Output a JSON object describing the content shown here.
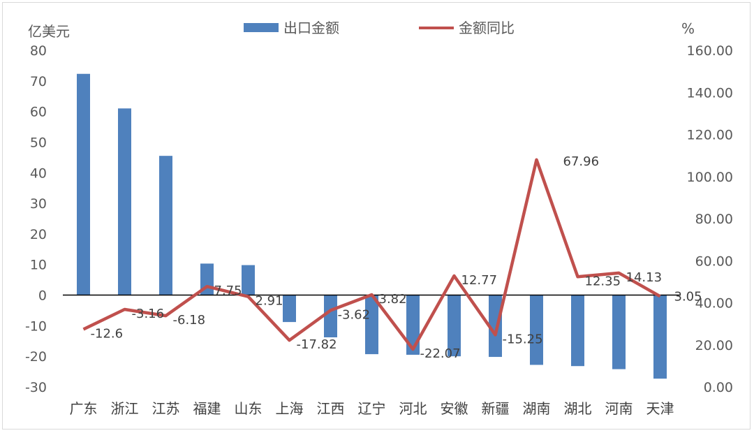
{
  "chart_data": {
    "type": "bar+line",
    "categories": [
      "广东",
      "浙江",
      "江苏",
      "福建",
      "山东",
      "上海",
      "江西",
      "辽宁",
      "河北",
      "安徽",
      "新疆",
      "湖南",
      "湖北",
      "河南",
      "天津"
    ],
    "series": [
      {
        "name": "出口金额",
        "type": "bar",
        "axis": "left",
        "color": "#4F81BD",
        "values": [
          72.3,
          61.0,
          45.5,
          10.3,
          9.8,
          -8.8,
          -13.8,
          -19.3,
          -19.5,
          -20.0,
          -20.2,
          -22.8,
          -23.2,
          -24.2,
          -27.3
        ]
      },
      {
        "name": "金额同比",
        "type": "line",
        "axis": "right",
        "color": "#C0504D",
        "values": [
          -12.6,
          -3.16,
          -6.18,
          7.75,
          2.91,
          -17.82,
          -3.62,
          3.82,
          -22.07,
          12.77,
          -15.25,
          67.96,
          12.35,
          14.13,
          3.05
        ],
        "data_labels": [
          "-12.6",
          "-3.16",
          "-6.18",
          "7.75",
          "2.91",
          "-17.82",
          "-3.62",
          "3.82",
          "-22.07",
          "12.77",
          "-15.25",
          "67.96",
          "12.35",
          "14.13",
          "3.05"
        ]
      }
    ],
    "left_axis": {
      "unit": "亿美元",
      "min": -30,
      "max": 80,
      "step": 10,
      "ticks": [
        "80",
        "70",
        "60",
        "50",
        "40",
        "30",
        "20",
        "10",
        "0",
        "-10",
        "-20",
        "-30"
      ]
    },
    "right_axis": {
      "unit": "%",
      "min": 0,
      "max": 160,
      "step": 20,
      "ticks": [
        "160.00",
        "140.00",
        "120.00",
        "100.00",
        "80.00",
        "60.00",
        "40.00",
        "20.00",
        "0.00"
      ],
      "line_value_offset": 40
    },
    "legend": {
      "position": "top",
      "entries": [
        "出口金额",
        "金额同比"
      ]
    },
    "grid": false
  }
}
